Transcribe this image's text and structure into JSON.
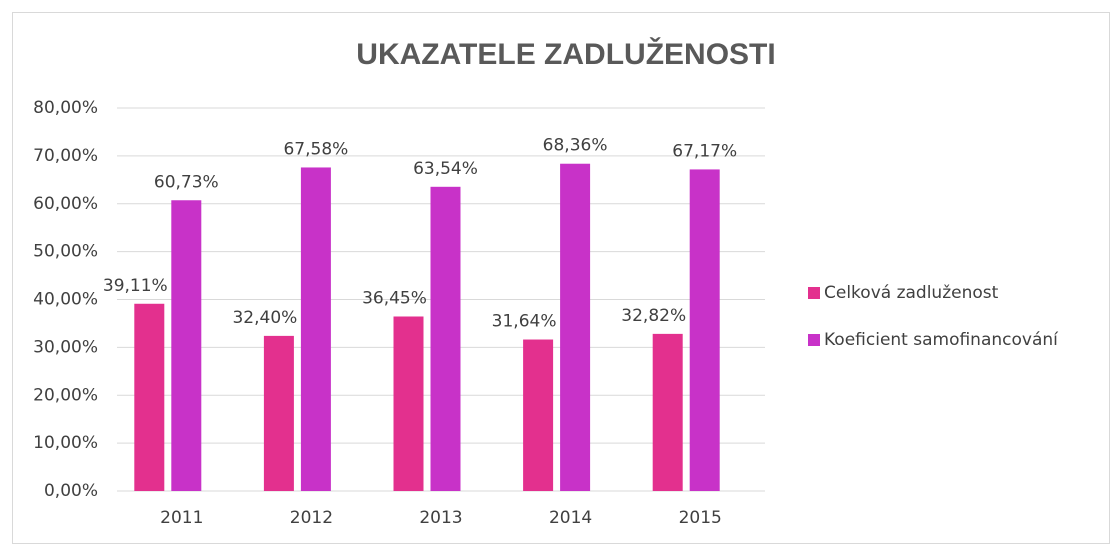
{
  "chart_data": {
    "type": "bar",
    "title": "UKAZATELE ZADLUŽENOSTI",
    "categories": [
      "2011",
      "2012",
      "2013",
      "2014",
      "2015"
    ],
    "series": [
      {
        "name": "Celková zadluženost",
        "color": "#e3308e",
        "values": [
          39.11,
          32.4,
          36.45,
          31.64,
          32.82
        ],
        "value_labels": [
          "39,11%",
          "32,40%",
          "36,45%",
          "31,64%",
          "32,82%"
        ]
      },
      {
        "name": "Koeficient samofinancování",
        "color": "#c832c8",
        "values": [
          60.73,
          67.58,
          63.54,
          68.36,
          67.17
        ],
        "value_labels": [
          "60,73%",
          "67,58%",
          "63,54%",
          "68,36%",
          "67,17%"
        ]
      }
    ],
    "ylim": [
      0,
      80
    ],
    "yticks": [
      {
        "value": 0,
        "label": "0,00%"
      },
      {
        "value": 10,
        "label": "10,00%"
      },
      {
        "value": 20,
        "label": "20,00%"
      },
      {
        "value": 30,
        "label": "30,00%"
      },
      {
        "value": 40,
        "label": "40,00%"
      },
      {
        "value": 50,
        "label": "50,00%"
      },
      {
        "value": 60,
        "label": "60,00%"
      },
      {
        "value": 70,
        "label": "70,00%"
      },
      {
        "value": 80,
        "label": "80,00%"
      }
    ],
    "grid": true,
    "legend": "right"
  }
}
